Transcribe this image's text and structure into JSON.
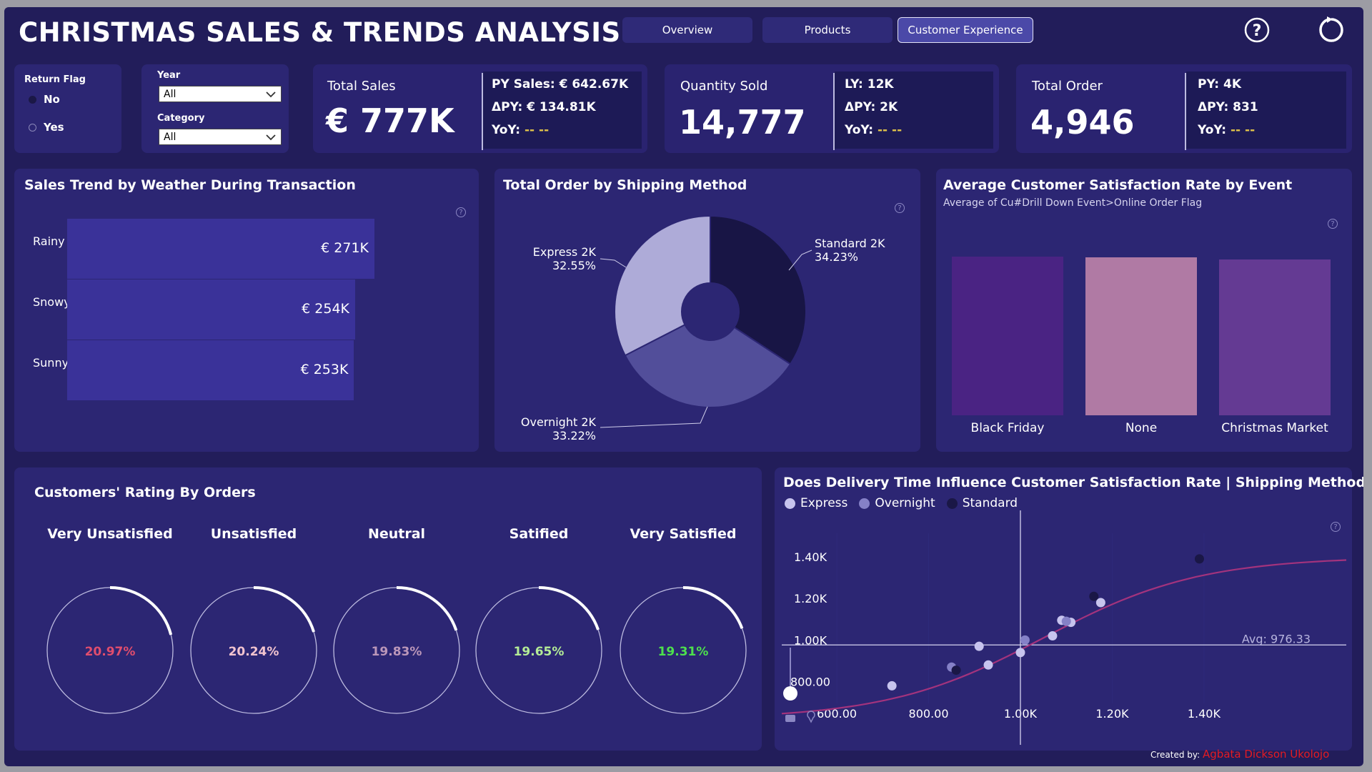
{
  "header": {
    "title": "CHRISTMAS SALES & TRENDS ANALYSIS",
    "tabs": [
      {
        "label": "Overview",
        "active": false
      },
      {
        "label": "Products",
        "active": false
      },
      {
        "label": "Customer Experience",
        "active": true
      }
    ],
    "icons": [
      "help-icon",
      "refresh-icon"
    ]
  },
  "filters": {
    "return_flag": {
      "label": "Return Flag",
      "options": [
        "No",
        "Yes"
      ],
      "selected": "No"
    },
    "year": {
      "label": "Year",
      "value": "All"
    },
    "category": {
      "label": "Category",
      "value": "All"
    }
  },
  "kpis": {
    "sales": {
      "label": "Total Sales",
      "value": "€ 777K",
      "line1": "PY Sales: € 642.67K",
      "line2": "ΔPY: € 134.81K",
      "line3_label": "YoY: ",
      "line3_value": "-- --"
    },
    "quantity": {
      "label": "Quantity Sold",
      "value": "14,777",
      "line1": "LY: 12K",
      "line2": "ΔPY: 2K",
      "line3_label": "YoY: ",
      "line3_value": "-- --"
    },
    "orders": {
      "label": "Total Order",
      "value": "4,946",
      "line1": "PY: 4K",
      "line2": "ΔPY: 831",
      "line3_label": "YoY: ",
      "line3_value": "-- --"
    }
  },
  "weather_chart": {
    "title": "Sales Trend by Weather During Transaction",
    "chart_data": {
      "type": "bar",
      "orientation": "horizontal",
      "categories": [
        "Rainy",
        "Snowy",
        "Sunny"
      ],
      "values": [
        271,
        254,
        253
      ],
      "labels": [
        "€ 271K",
        "€ 254K",
        "€ 253K"
      ],
      "color": "#3a3299"
    }
  },
  "shipping_chart": {
    "title": "Total Order by Shipping Method",
    "chart_data": {
      "type": "pie",
      "donut": true,
      "slices": [
        {
          "name": "Standard",
          "value_label": "2K",
          "pct": 34.23,
          "pct_label": "34.23%",
          "color": "#181545"
        },
        {
          "name": "Overnight",
          "value_label": "2K",
          "pct": 33.22,
          "pct_label": "33.22%",
          "color": "#524e9a"
        },
        {
          "name": "Express",
          "value_label": "2K",
          "pct": 32.55,
          "pct_label": "32.55%",
          "color": "#aeabd8"
        }
      ]
    }
  },
  "satisfaction_event_chart": {
    "title": "Average Customer Satisfaction Rate by Event",
    "subtitle": "Average of Cu#Drill Down Event>Online Order Flag",
    "chart_data": {
      "type": "bar",
      "categories": [
        "Black Friday",
        "None",
        "Christmas Market"
      ],
      "values": [
        1.0,
        0.995,
        0.98
      ],
      "colors": [
        "#4a2383",
        "#b07aa4",
        "#643a93"
      ]
    }
  },
  "rating_chart": {
    "title": "Customers' Rating By Orders",
    "chart_data": {
      "type": "gauge",
      "items": [
        {
          "label": "Very Unsatisfied",
          "value": 20.97,
          "text": "20.97%",
          "color": "#e04d6d"
        },
        {
          "label": "Unsatisfied",
          "value": 20.24,
          "text": "20.24%",
          "color": "#f2c4cf"
        },
        {
          "label": "Neutral",
          "value": 19.83,
          "text": "19.83%",
          "color": "#bb97b9"
        },
        {
          "label": "Satified",
          "value": 19.65,
          "text": "19.65%",
          "color": "#b4ec96"
        },
        {
          "label": "Very Satisfied",
          "value": 19.31,
          "text": "19.31%",
          "color": "#4de04d"
        }
      ]
    }
  },
  "delivery_chart": {
    "title": "Does Delivery Time Influence Customer Satisfaction Rate | Shipping Method?",
    "chart_data": {
      "type": "scatter",
      "series": [
        {
          "name": "Express",
          "color": "#c7c4ee",
          "points": [
            [
              720,
              780
            ],
            [
              910,
              970
            ],
            [
              1090,
              1095
            ],
            [
              1175,
              1180
            ],
            [
              1110,
              1085
            ],
            [
              1070,
              1020
            ],
            [
              1000,
              940
            ],
            [
              930,
              880
            ]
          ]
        },
        {
          "name": "Overnight",
          "color": "#8581c7",
          "points": [
            [
              850,
              870
            ],
            [
              1100,
              1090
            ],
            [
              1010,
              1000
            ]
          ]
        },
        {
          "name": "Standard",
          "color": "#1a1746",
          "points": [
            [
              860,
              855
            ],
            [
              1160,
              1210
            ],
            [
              1390,
              1390
            ]
          ]
        }
      ],
      "trendline": {
        "color": "#a3337d"
      },
      "avg_line": {
        "value": 976.33,
        "label": "Avg: 976.33"
      },
      "x_ticks": [
        "600.00",
        "800.00",
        "1.00K",
        "1.20K",
        "1.40K"
      ],
      "y_ticks": [
        "1.40K",
        "1.20K",
        "1.00K",
        "800.00"
      ],
      "xlim": [
        480,
        1710
      ],
      "ylim": [
        620,
        1520
      ],
      "x_ref": 1000,
      "legend_position": "top-left"
    }
  },
  "footer": {
    "created_by_label": "Created by: ",
    "author": "Agbata Dickson Ukolojo"
  }
}
